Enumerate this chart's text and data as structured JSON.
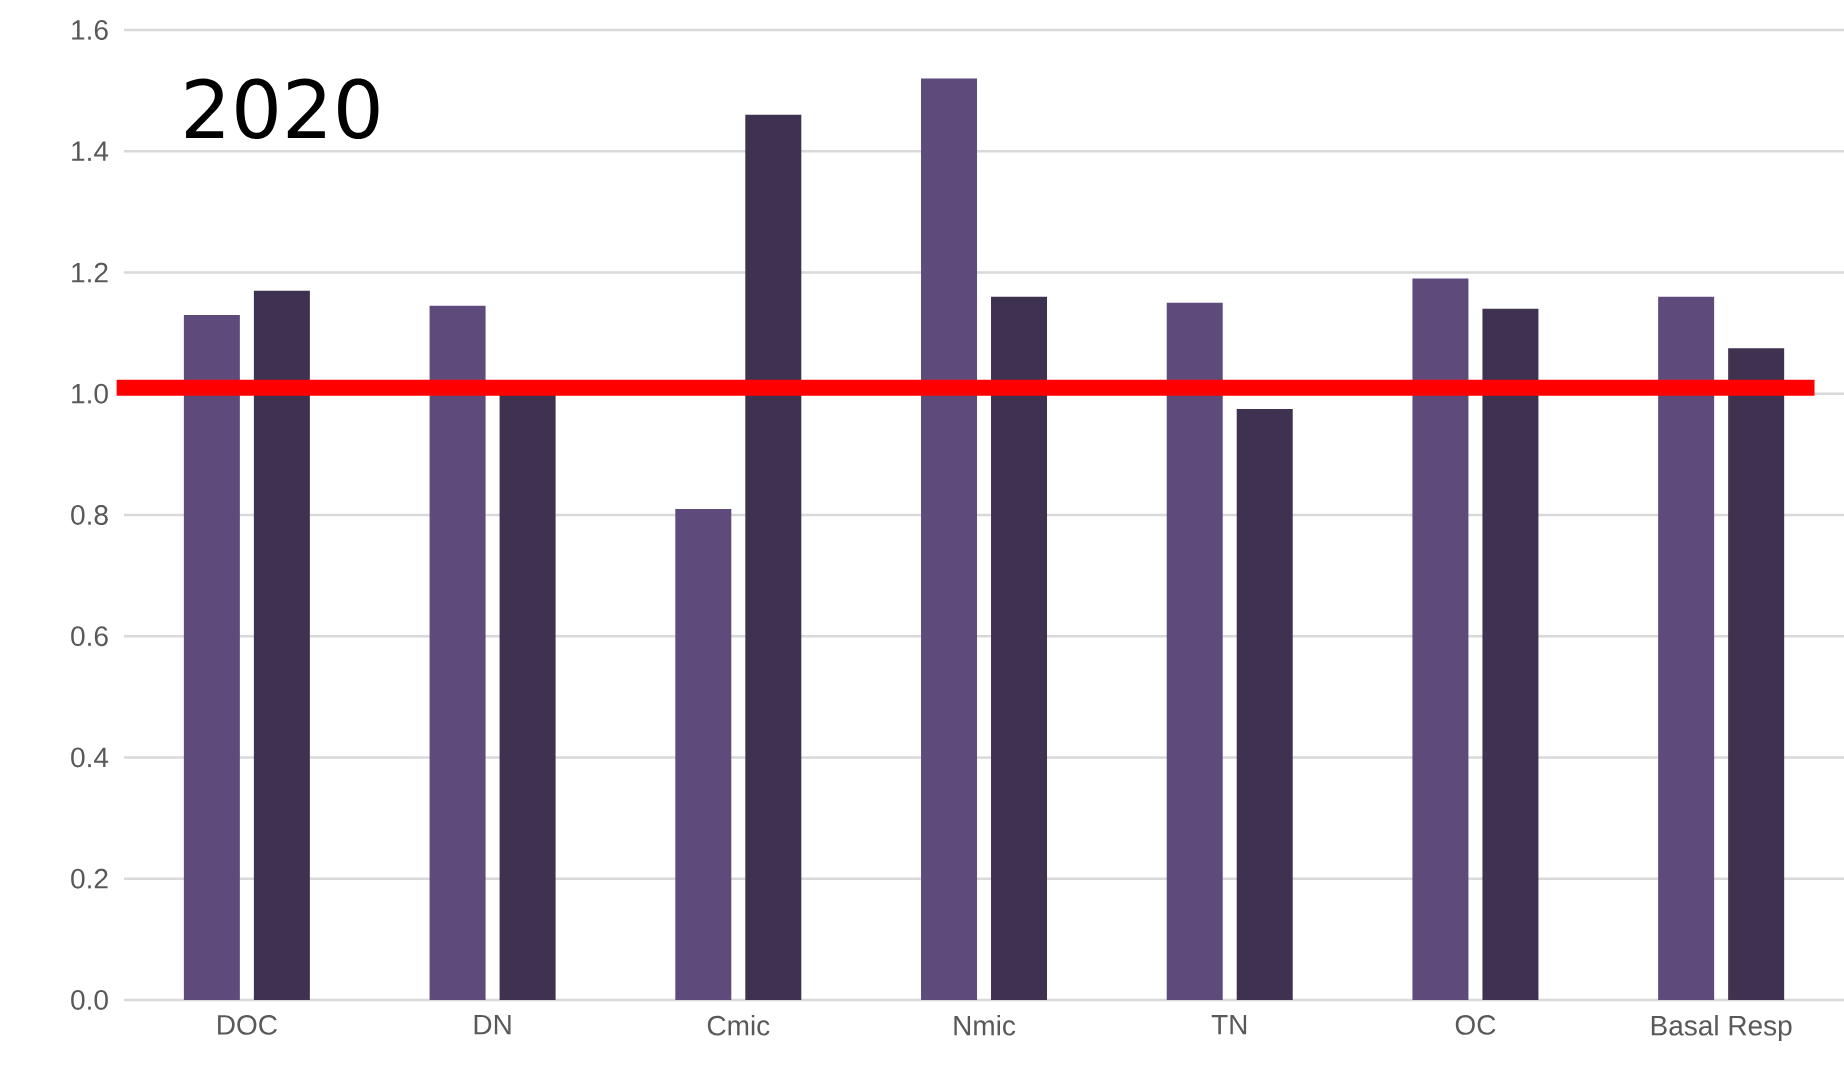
{
  "chart_data": {
    "type": "bar",
    "title": "2020",
    "categories": [
      "DOC",
      "DN",
      "Cmic",
      "Nmic",
      "TN",
      "OC",
      "Basal Resp"
    ],
    "series": [
      {
        "color": "#5f4b7b",
        "values": [
          1.13,
          1.145,
          0.81,
          1.52,
          1.15,
          1.19,
          1.16
        ]
      },
      {
        "color": "#3f3150",
        "values": [
          1.17,
          1.0,
          1.46,
          1.16,
          0.975,
          1.14,
          1.075
        ]
      }
    ],
    "ylim": [
      0,
      1.6
    ],
    "yticks": [
      {
        "value": 0,
        "label": "0.0"
      },
      {
        "value": 0.2,
        "label": "0.2"
      },
      {
        "value": 0.4,
        "label": "0.4"
      },
      {
        "value": 0.6,
        "label": "0.6"
      },
      {
        "value": 0.8,
        "label": "0.8"
      },
      {
        "value": 1,
        "label": "1.0"
      },
      {
        "value": 1.2,
        "label": "1.2"
      },
      {
        "value": 1.4,
        "label": "1.4"
      },
      {
        "value": 1.6,
        "label": "1.6"
      }
    ],
    "grid": "y",
    "ref_lines": [
      {
        "axis": "y",
        "value": 1.01,
        "color": "#ff0000"
      }
    ]
  }
}
